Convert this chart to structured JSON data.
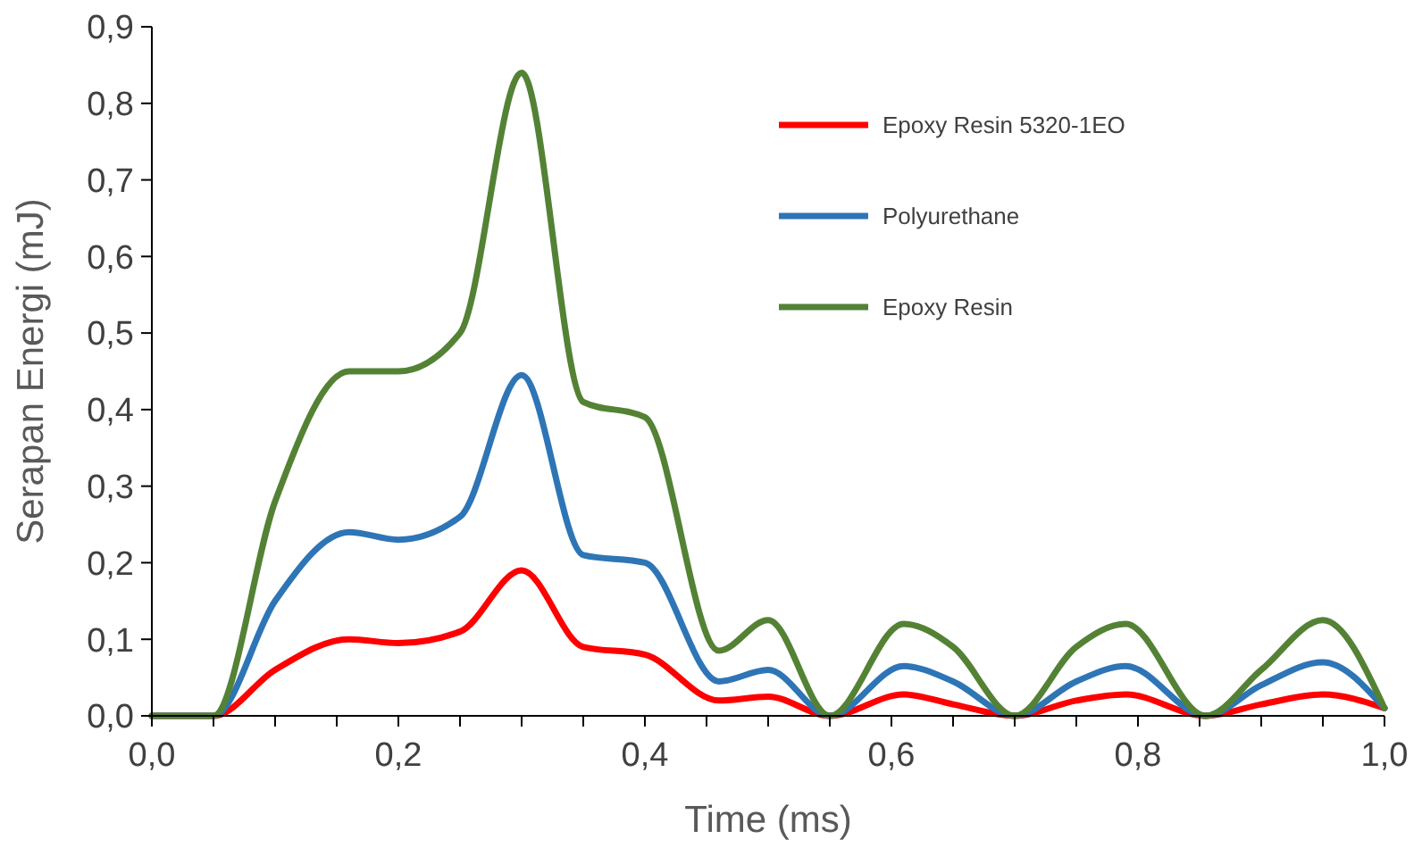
{
  "chart_data": {
    "type": "line",
    "xlabel": "Time (ms)",
    "ylabel": "Serapan Energi (mJ)",
    "x": [
      0,
      0.05,
      0.1,
      0.16,
      0.2,
      0.25,
      0.3,
      0.35,
      0.4,
      0.46,
      0.5,
      0.55,
      0.61,
      0.65,
      0.7,
      0.75,
      0.79,
      0.855,
      0.9,
      0.95,
      1.0
    ],
    "series": [
      {
        "name": "Epoxy Resin 5320-1EO",
        "color": "#ff0000",
        "values": [
          0,
          0,
          0.06,
          0.1,
          0.095,
          0.11,
          0.19,
          0.09,
          0.08,
          0.02,
          0.025,
          0,
          0.028,
          0.015,
          0,
          0.02,
          0.028,
          0,
          0.015,
          0.028,
          0.01
        ]
      },
      {
        "name": "Polyurethane",
        "color": "#2e75b6",
        "values": [
          0,
          0,
          0.15,
          0.24,
          0.23,
          0.26,
          0.445,
          0.21,
          0.2,
          0.045,
          0.06,
          0,
          0.065,
          0.045,
          0,
          0.045,
          0.065,
          0,
          0.04,
          0.07,
          0.01
        ]
      },
      {
        "name": "Epoxy Resin",
        "color": "#548235",
        "values": [
          0,
          0,
          0.28,
          0.45,
          0.45,
          0.5,
          0.84,
          0.41,
          0.39,
          0.085,
          0.125,
          0,
          0.12,
          0.09,
          0,
          0.09,
          0.12,
          0,
          0.06,
          0.125,
          0.01
        ]
      }
    ],
    "xlim": [
      0,
      1
    ],
    "ylim": [
      0,
      0.9
    ],
    "xticks": [
      {
        "value": 0,
        "label": "0,0"
      },
      {
        "value": 0.05,
        "label": null
      },
      {
        "value": 0.1,
        "label": null
      },
      {
        "value": 0.15,
        "label": null
      },
      {
        "value": 0.2,
        "label": "0,2"
      },
      {
        "value": 0.25,
        "label": null
      },
      {
        "value": 0.3,
        "label": null
      },
      {
        "value": 0.35,
        "label": null
      },
      {
        "value": 0.4,
        "label": "0,4"
      },
      {
        "value": 0.45,
        "label": null
      },
      {
        "value": 0.5,
        "label": null
      },
      {
        "value": 0.55,
        "label": null
      },
      {
        "value": 0.6,
        "label": "0,6"
      },
      {
        "value": 0.65,
        "label": null
      },
      {
        "value": 0.7,
        "label": null
      },
      {
        "value": 0.75,
        "label": null
      },
      {
        "value": 0.8,
        "label": "0,8"
      },
      {
        "value": 0.85,
        "label": null
      },
      {
        "value": 0.9,
        "label": null
      },
      {
        "value": 0.95,
        "label": null
      },
      {
        "value": 1,
        "label": "1,0"
      }
    ],
    "yticks": [
      {
        "value": 0,
        "label": "0,0"
      },
      {
        "value": 0.1,
        "label": "0,1"
      },
      {
        "value": 0.2,
        "label": "0,2"
      },
      {
        "value": 0.3,
        "label": "0,3"
      },
      {
        "value": 0.4,
        "label": "0,4"
      },
      {
        "value": 0.5,
        "label": "0,5"
      },
      {
        "value": 0.6,
        "label": "0,6"
      },
      {
        "value": 0.7,
        "label": "0,7"
      },
      {
        "value": 0.8,
        "label": "0,8"
      },
      {
        "value": 0.9,
        "label": "0,9"
      }
    ],
    "legend": "top right",
    "marker": "none",
    "line_style": "solid"
  }
}
